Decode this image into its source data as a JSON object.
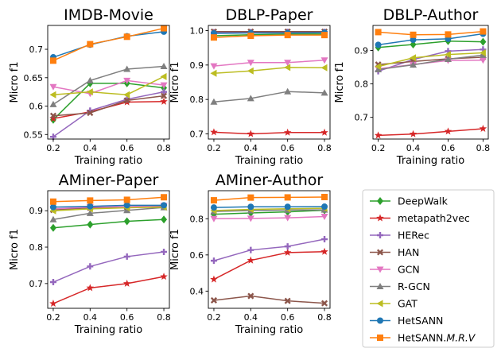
{
  "chart_data": [
    {
      "type": "line",
      "title": "IMDB-Movie",
      "xlabel": "Training ratio",
      "ylabel": "Micro f1",
      "x": [
        0.2,
        0.4,
        0.6,
        0.8
      ],
      "xlim": [
        0.17,
        0.83
      ],
      "ylim": [
        0.542,
        0.742
      ],
      "xticks": [
        0.2,
        0.4,
        0.6,
        0.8
      ],
      "yticks": [
        0.55,
        0.6,
        0.65,
        0.7
      ],
      "series": [
        {
          "name": "DeepWalk",
          "values": [
            0.576,
            0.64,
            0.64,
            0.632
          ]
        },
        {
          "name": "metapath2vec",
          "values": [
            0.578,
            0.59,
            0.607,
            0.608
          ]
        },
        {
          "name": "HERec",
          "values": [
            0.546,
            0.592,
            0.612,
            0.625
          ]
        },
        {
          "name": "HAN",
          "values": [
            0.583,
            0.588,
            0.61,
            0.618
          ]
        },
        {
          "name": "GCN",
          "values": [
            0.634,
            0.622,
            0.645,
            0.637
          ]
        },
        {
          "name": "R-GCN",
          "values": [
            0.603,
            0.645,
            0.665,
            0.67
          ]
        },
        {
          "name": "GAT",
          "values": [
            0.62,
            0.625,
            0.62,
            0.652
          ]
        },
        {
          "name": "HetSANN",
          "values": [
            0.686,
            0.708,
            0.723,
            0.731
          ]
        },
        {
          "name": "HetSANN.M.R.V",
          "values": [
            0.68,
            0.709,
            0.722,
            0.737
          ]
        }
      ]
    },
    {
      "type": "line",
      "title": "DBLP-Paper",
      "xlabel": "Training ratio",
      "ylabel": "Micro f1",
      "x": [
        0.2,
        0.4,
        0.6,
        0.8
      ],
      "xlim": [
        0.17,
        0.83
      ],
      "ylim": [
        0.685,
        1.015
      ],
      "xticks": [
        0.2,
        0.4,
        0.6,
        0.8
      ],
      "yticks": [
        0.7,
        0.8,
        0.9,
        1.0
      ],
      "series": [
        {
          "name": "DeepWalk",
          "values": [
            0.985,
            0.988,
            0.99,
            0.99
          ]
        },
        {
          "name": "metapath2vec",
          "values": [
            0.705,
            0.7,
            0.704,
            0.704
          ]
        },
        {
          "name": "HERec",
          "values": [
            0.995,
            0.995,
            0.996,
            0.996
          ]
        },
        {
          "name": "HAN",
          "values": [
            0.997,
            0.997,
            0.997,
            0.997
          ]
        },
        {
          "name": "GCN",
          "values": [
            0.897,
            0.907,
            0.907,
            0.914
          ]
        },
        {
          "name": "R-GCN",
          "values": [
            0.793,
            0.803,
            0.823,
            0.819
          ]
        },
        {
          "name": "GAT",
          "values": [
            0.876,
            0.883,
            0.893,
            0.892
          ]
        },
        {
          "name": "HetSANN",
          "values": [
            0.992,
            0.993,
            0.993,
            0.994
          ]
        },
        {
          "name": "HetSANN.M.R.V",
          "values": [
            0.98,
            0.985,
            0.987,
            0.987
          ]
        }
      ]
    },
    {
      "type": "line",
      "title": "DBLP-Author",
      "xlabel": "Training ratio",
      "ylabel": "Micro f1",
      "x": [
        0.2,
        0.4,
        0.6,
        0.8
      ],
      "xlim": [
        0.17,
        0.83
      ],
      "ylim": [
        0.635,
        0.975
      ],
      "xticks": [
        0.2,
        0.4,
        0.6,
        0.8
      ],
      "yticks": [
        0.7,
        0.8,
        0.9
      ],
      "series": [
        {
          "name": "DeepWalk",
          "values": [
            0.909,
            0.918,
            0.928,
            0.926
          ]
        },
        {
          "name": "metapath2vec",
          "values": [
            0.646,
            0.65,
            0.658,
            0.666
          ]
        },
        {
          "name": "HERec",
          "values": [
            0.838,
            0.873,
            0.898,
            0.903
          ]
        },
        {
          "name": "HAN",
          "values": [
            0.858,
            0.867,
            0.875,
            0.88
          ]
        },
        {
          "name": "GCN",
          "values": [
            0.845,
            0.858,
            0.87,
            0.871
          ]
        },
        {
          "name": "R-GCN",
          "values": [
            0.843,
            0.857,
            0.874,
            0.886
          ]
        },
        {
          "name": "GAT",
          "values": [
            0.852,
            0.878,
            0.888,
            0.893
          ]
        },
        {
          "name": "HetSANN",
          "values": [
            0.917,
            0.932,
            0.935,
            0.95
          ]
        },
        {
          "name": "HetSANN.M.R.V",
          "values": [
            0.955,
            0.947,
            0.948,
            0.957
          ]
        }
      ]
    },
    {
      "type": "line",
      "title": "AMiner-Paper",
      "xlabel": "Training ratio",
      "ylabel": "Micro f1",
      "x": [
        0.2,
        0.4,
        0.6,
        0.8
      ],
      "xlim": [
        0.17,
        0.83
      ],
      "ylim": [
        0.632,
        0.955
      ],
      "xticks": [
        0.2,
        0.4,
        0.6,
        0.8
      ],
      "yticks": [
        0.7,
        0.8,
        0.9
      ],
      "series": [
        {
          "name": "DeepWalk",
          "values": [
            0.853,
            0.862,
            0.871,
            0.876
          ]
        },
        {
          "name": "metapath2vec",
          "values": [
            0.645,
            0.688,
            0.7,
            0.719
          ]
        },
        {
          "name": "HERec",
          "values": [
            0.704,
            0.747,
            0.774,
            0.787
          ]
        },
        {
          "name": "HAN",
          "values": [
            0.902,
            0.908,
            0.91,
            0.912
          ]
        },
        {
          "name": "GCN",
          "values": [
            0.905,
            0.91,
            0.911,
            0.914
          ]
        },
        {
          "name": "R-GCN",
          "values": [
            0.876,
            0.893,
            0.901,
            0.909
          ]
        },
        {
          "name": "GAT",
          "values": [
            0.9,
            0.905,
            0.908,
            0.91
          ]
        },
        {
          "name": "HetSANN",
          "values": [
            0.91,
            0.912,
            0.915,
            0.915
          ]
        },
        {
          "name": "HetSANN.M.R.V",
          "values": [
            0.925,
            0.928,
            0.93,
            0.937
          ]
        }
      ]
    },
    {
      "type": "line",
      "title": "AMiner-Author",
      "xlabel": "Training ratio",
      "ylabel": "Micro f1",
      "x": [
        0.2,
        0.4,
        0.6,
        0.8
      ],
      "xlim": [
        0.17,
        0.83
      ],
      "ylim": [
        0.305,
        0.955
      ],
      "xticks": [
        0.2,
        0.4,
        0.6,
        0.8
      ],
      "yticks": [
        0.4,
        0.6,
        0.8
      ],
      "series": [
        {
          "name": "DeepWalk",
          "values": [
            0.825,
            0.832,
            0.838,
            0.847
          ]
        },
        {
          "name": "metapath2vec",
          "values": [
            0.465,
            0.57,
            0.613,
            0.618
          ]
        },
        {
          "name": "HERec",
          "values": [
            0.568,
            0.627,
            0.647,
            0.687
          ]
        },
        {
          "name": "HAN",
          "values": [
            0.349,
            0.373,
            0.346,
            0.333
          ]
        },
        {
          "name": "GCN",
          "values": [
            0.8,
            0.802,
            0.805,
            0.812
          ]
        },
        {
          "name": "R-GCN",
          "values": [
            0.84,
            0.845,
            0.848,
            0.849
          ]
        },
        {
          "name": "GAT",
          "values": [
            0.845,
            0.852,
            0.855,
            0.858
          ]
        },
        {
          "name": "HetSANN",
          "values": [
            0.862,
            0.866,
            0.866,
            0.867
          ]
        },
        {
          "name": "HetSANN.M.R.V",
          "values": [
            0.902,
            0.917,
            0.918,
            0.92
          ]
        }
      ]
    }
  ],
  "legend": {
    "placement": "bottom-right",
    "entries": [
      {
        "label": "DeepWalk",
        "color": "#2ca02c",
        "marker": "diamond"
      },
      {
        "label": "metapath2vec",
        "color": "#d62728",
        "marker": "star"
      },
      {
        "label": "HERec",
        "color": "#9467bd",
        "marker": "plus"
      },
      {
        "label": "HAN",
        "color": "#8c564b",
        "marker": "x"
      },
      {
        "label": "GCN",
        "color": "#e377c2",
        "marker": "triangle-down"
      },
      {
        "label": "R-GCN",
        "color": "#7f7f7f",
        "marker": "triangle-up"
      },
      {
        "label": "GAT",
        "color": "#bcbd22",
        "marker": "triangle-left"
      },
      {
        "label": "HetSANN",
        "color": "#1f77b4",
        "marker": "circle"
      },
      {
        "label": "HetSANN.M.R.V",
        "label_prefix": "HetSANN.",
        "label_italic": "M.R.V",
        "color": "#ff7f0e",
        "marker": "square"
      }
    ]
  }
}
